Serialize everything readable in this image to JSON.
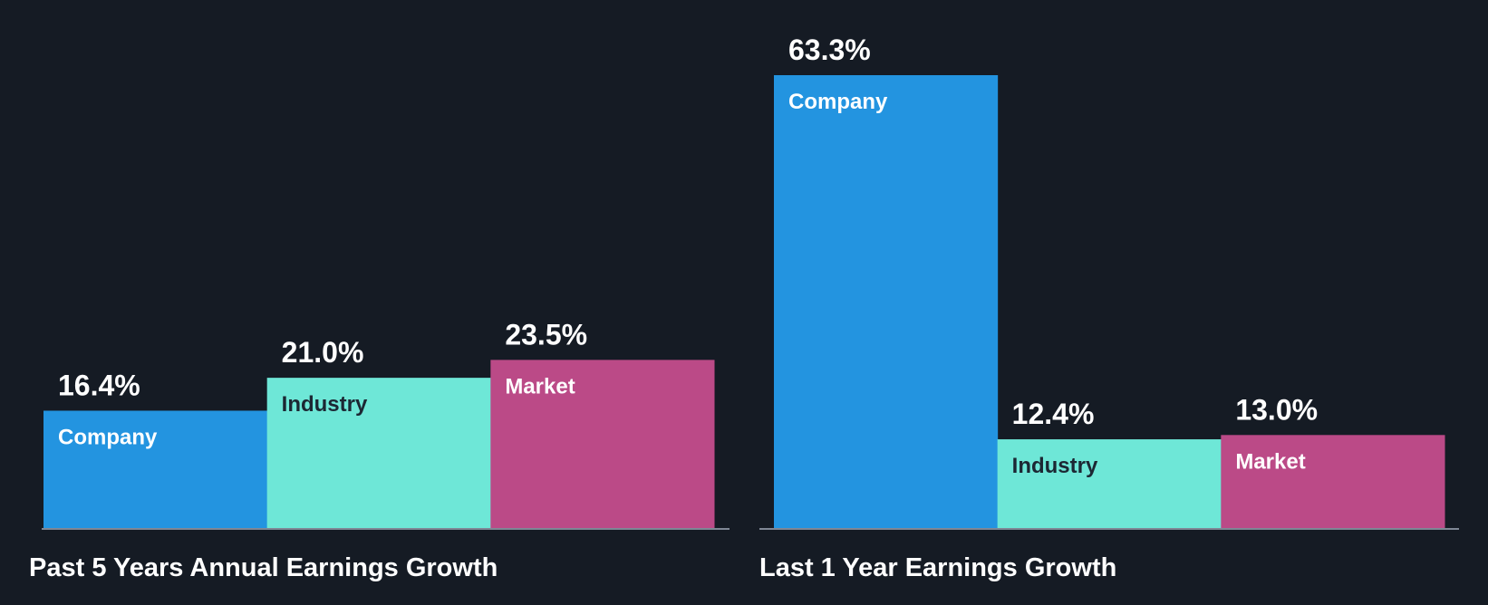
{
  "colors": {
    "background": "#151b24",
    "company": "#2394e0",
    "industry": "#6ee7d7",
    "market": "#bb4a87",
    "axis_line": "#7f8795",
    "text_light": "#ffffff",
    "text_dark": "#1c2733"
  },
  "chart_data": [
    {
      "type": "bar",
      "title": "Past 5 Years Annual Earnings Growth",
      "categories": [
        "Company",
        "Industry",
        "Market"
      ],
      "values": [
        16.4,
        21.0,
        23.5
      ],
      "value_labels": [
        "16.4%",
        "21.0%",
        "23.5%"
      ],
      "ylim": [
        0,
        63.3
      ],
      "grid": false
    },
    {
      "type": "bar",
      "title": "Last 1 Year Earnings Growth",
      "categories": [
        "Company",
        "Industry",
        "Market"
      ],
      "values": [
        63.3,
        12.4,
        13.0
      ],
      "value_labels": [
        "63.3%",
        "12.4%",
        "13.0%"
      ],
      "ylim": [
        0,
        63.3
      ],
      "grid": false
    }
  ]
}
